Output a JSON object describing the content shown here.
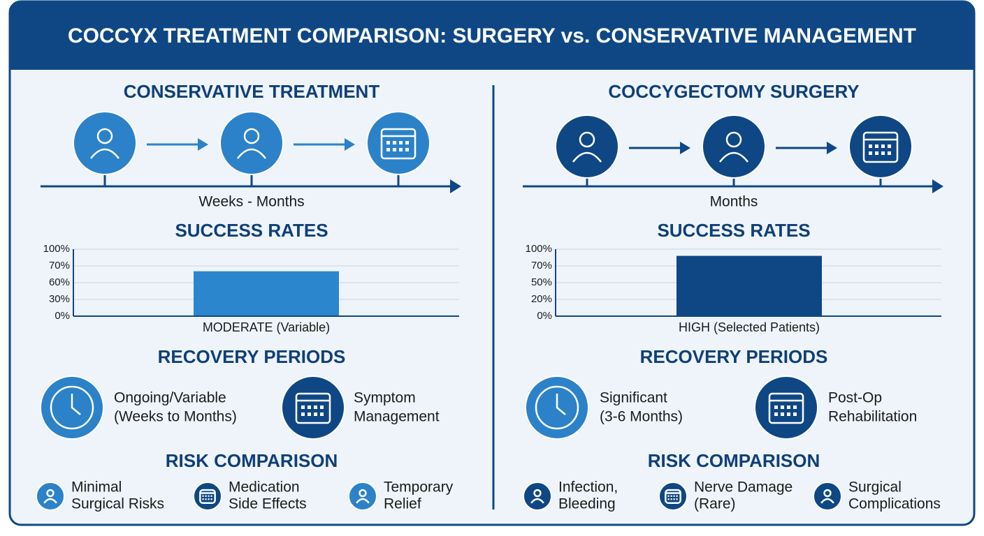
{
  "header": {
    "title": "COCCYX TREATMENT COMPARISON: SURGERY vs. CONSERVATIVE MANAGEMENT"
  },
  "panels": [
    {
      "title": "CONSERVATIVE TREATMENT",
      "timeline_label": "Weeks - Months",
      "recovery_title": "RECOVERY PERIODS",
      "recovery": [
        [
          "Ongoing/Variable",
          "(Weeks to Months)"
        ],
        [
          "Symptom",
          "Management"
        ]
      ],
      "risk_title": "RISK COMPARISON",
      "risks": [
        [
          "Minimal",
          "Surgical Risks"
        ],
        [
          "Medication",
          "Side Effects"
        ],
        [
          "Temporary",
          "Relief"
        ]
      ]
    },
    {
      "title": "COCCYGECTOMY SURGERY",
      "timeline_label": "Months",
      "recovery_title": "RECOVERY PERIODS",
      "recovery": [
        [
          "Significant",
          "(3-6 Months)"
        ],
        [
          "Post-Op",
          "Rehabilitation"
        ]
      ],
      "risk_title": "RISK COMPARISON",
      "risks": [
        [
          "Infection,",
          "Bleeding"
        ],
        [
          "Nerve Damage",
          "(Rare)"
        ],
        [
          "Surgical",
          "Complications"
        ]
      ]
    }
  ],
  "chart_data": [
    {
      "type": "bar",
      "title": "SUCCESS RATES",
      "categories": [
        "MODERATE (Variable)"
      ],
      "values": [
        67
      ],
      "color": "#2b86cd",
      "ylim": [
        0,
        100
      ],
      "ytick_labels": [
        "100%",
        "70%",
        "60%",
        "30%",
        "0%"
      ]
    },
    {
      "type": "bar",
      "title": "SUCCESS RATES",
      "categories": [
        "HIGH (Selected Patients)"
      ],
      "values": [
        90
      ],
      "color": "#0f4785",
      "ylim": [
        0,
        100
      ],
      "ytick_labels": [
        "100%",
        "70%",
        "50%",
        "20%",
        "0%"
      ]
    }
  ]
}
